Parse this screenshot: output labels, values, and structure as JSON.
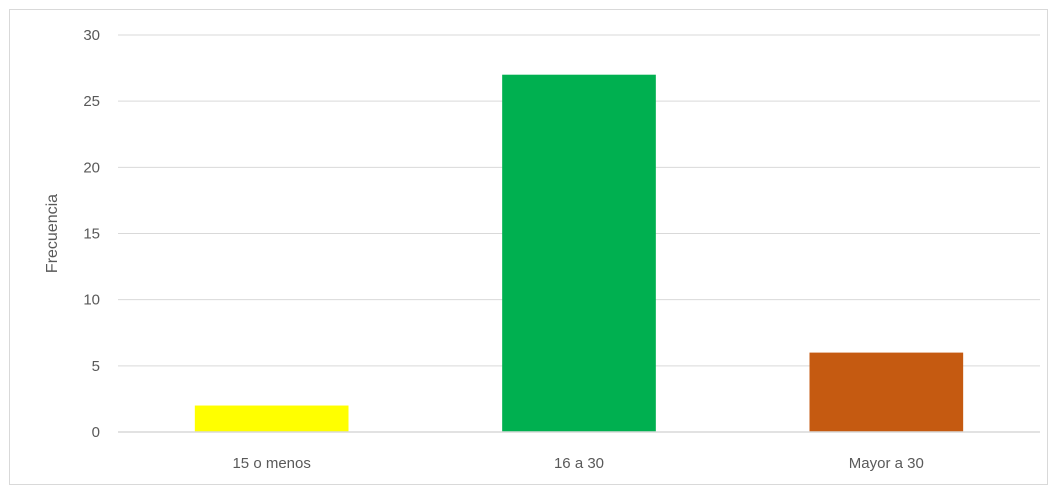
{
  "chart_data": {
    "type": "bar",
    "categories": [
      "15 o menos",
      "16 a 30",
      "Mayor a 30"
    ],
    "values": [
      2,
      27,
      6
    ],
    "colors": [
      "#ffff00",
      "#00b050",
      "#c55a11"
    ],
    "title": "",
    "xlabel": "",
    "ylabel": "Frecuencia",
    "ylim": [
      0,
      30
    ],
    "yticks": [
      0,
      5,
      10,
      15,
      20,
      25,
      30
    ],
    "grid": true,
    "legend": "none"
  }
}
